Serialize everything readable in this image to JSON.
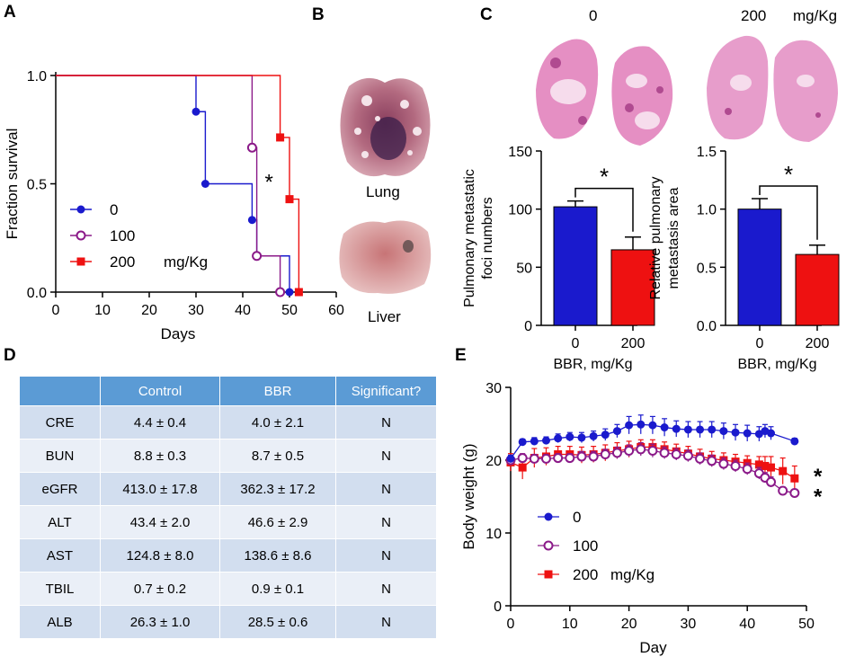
{
  "panels": {
    "A": "A",
    "B": "B",
    "C": "C",
    "D": "D",
    "E": "E"
  },
  "colors": {
    "dose0": "#1a1acd",
    "dose100": "#8b1a89",
    "dose200": "#ee1111",
    "table_header": "#5b9bd5",
    "table_row": "#d2deef",
    "table_row_alt": "#eaeff7"
  },
  "survival": {
    "chart_data": {
      "type": "line",
      "title": "",
      "xlabel": "Days",
      "ylabel": "Fraction survival",
      "xlim": [
        0,
        60
      ],
      "ylim": [
        0,
        1.0
      ],
      "x_ticks": [
        "0",
        "10",
        "20",
        "30",
        "40",
        "50",
        "60"
      ],
      "y_ticks": [
        "0.0",
        "0.5",
        "1.0"
      ],
      "legend": [
        "0",
        "100",
        "200"
      ],
      "legend_unit": "mg/Kg",
      "annotation": "*",
      "series": [
        {
          "name": "0",
          "steps": [
            [
              0,
              1.0
            ],
            [
              30,
              1.0
            ],
            [
              30,
              0.833
            ],
            [
              32,
              0.833
            ],
            [
              32,
              0.5
            ],
            [
              42,
              0.5
            ],
            [
              42,
              0.333
            ],
            [
              43,
              0.333
            ],
            [
              43,
              0.167
            ],
            [
              50,
              0.167
            ],
            [
              50,
              0.0
            ]
          ],
          "markers": [
            [
              30,
              0.833
            ],
            [
              32,
              0.5
            ],
            [
              42,
              0.333
            ],
            [
              50,
              0.0
            ]
          ]
        },
        {
          "name": "100",
          "steps": [
            [
              0,
              1.0
            ],
            [
              42,
              1.0
            ],
            [
              42,
              0.667
            ],
            [
              43,
              0.667
            ],
            [
              43,
              0.167
            ],
            [
              48,
              0.167
            ],
            [
              48,
              0.0
            ]
          ],
          "markers": [
            [
              42,
              0.667
            ],
            [
              43,
              0.167
            ],
            [
              48,
              0.0
            ]
          ]
        },
        {
          "name": "200",
          "steps": [
            [
              0,
              1.0
            ],
            [
              48,
              1.0
            ],
            [
              48,
              0.714
            ],
            [
              50,
              0.714
            ],
            [
              50,
              0.429
            ],
            [
              52,
              0.429
            ],
            [
              52,
              0.0
            ]
          ],
          "markers": [
            [
              48,
              0.714
            ],
            [
              50,
              0.429
            ],
            [
              52,
              0.0
            ]
          ]
        }
      ]
    }
  },
  "organs": {
    "lung_label": "Lung",
    "liver_label": "Liver"
  },
  "histology": {
    "label_0": "0",
    "label_200": "200",
    "unit": "mg/Kg"
  },
  "foci_chart": {
    "chart_data": {
      "type": "bar",
      "categories": [
        "0",
        "200"
      ],
      "values": [
        102,
        65
      ],
      "errors": [
        5,
        11
      ],
      "ylabel": "Pulmonary metastatic foci numbers",
      "xlabel": "BBR, mg/Kg",
      "ylim": [
        0,
        150
      ],
      "y_ticks": [
        "0",
        "50",
        "100",
        "150"
      ],
      "annotation": "*"
    }
  },
  "area_chart": {
    "chart_data": {
      "type": "bar",
      "categories": [
        "0",
        "200"
      ],
      "values": [
        1.0,
        0.61
      ],
      "errors": [
        0.09,
        0.08
      ],
      "ylabel": "Relative pulmonary metastasis area",
      "xlabel": "BBR, mg/Kg",
      "ylim": [
        0,
        1.5
      ],
      "y_ticks": [
        "0.0",
        "0.5",
        "1.0",
        "1.5"
      ],
      "annotation": "*"
    }
  },
  "table": {
    "chart_data": {
      "type": "table",
      "headers": [
        "",
        "Control",
        "BBR",
        "Significant?"
      ],
      "rows": [
        [
          "CRE",
          "4.4 ± 0.4",
          "4.0 ± 2.1",
          "N"
        ],
        [
          "BUN",
          "8.8 ± 0.3",
          "8.7 ± 0.5",
          "N"
        ],
        [
          "eGFR",
          "413.0 ± 17.8",
          "362.3 ± 17.2",
          "N"
        ],
        [
          "ALT",
          "43.4 ± 2.0",
          "46.6 ± 2.9",
          "N"
        ],
        [
          "AST",
          "124.8 ± 8.0",
          "138.6 ± 8.6",
          "N"
        ],
        [
          "TBIL",
          "0.7 ± 0.2",
          "0.9 ± 0.1",
          "N"
        ],
        [
          "ALB",
          "26.3 ± 1.0",
          "28.5 ± 0.6",
          "N"
        ]
      ]
    }
  },
  "weight": {
    "chart_data": {
      "type": "line",
      "xlabel": "Day",
      "ylabel": "Body weight (g)",
      "xlim": [
        0,
        50
      ],
      "ylim": [
        0,
        30
      ],
      "x_ticks": [
        "0",
        "10",
        "20",
        "30",
        "40",
        "50"
      ],
      "y_ticks": [
        "0",
        "10",
        "20",
        "30"
      ],
      "legend": [
        "0",
        "100",
        "200"
      ],
      "legend_unit": "mg/Kg",
      "annotations": [
        "*",
        "*"
      ],
      "series": [
        {
          "name": "0",
          "x": [
            0,
            2,
            4,
            6,
            8,
            10,
            12,
            14,
            16,
            18,
            20,
            22,
            24,
            26,
            28,
            30,
            32,
            34,
            36,
            38,
            40,
            42,
            43,
            44,
            48
          ],
          "y": [
            20.2,
            22.5,
            22.6,
            22.7,
            23.0,
            23.2,
            23.1,
            23.3,
            23.5,
            24.0,
            24.8,
            24.9,
            24.8,
            24.5,
            24.3,
            24.2,
            24.2,
            24.2,
            24.0,
            23.8,
            23.7,
            23.6,
            24.0,
            23.7,
            22.6
          ],
          "err": [
            0.5,
            0.4,
            0.5,
            0.5,
            0.6,
            0.6,
            0.7,
            0.7,
            0.8,
            0.9,
            1.2,
            1.3,
            1.2,
            1.2,
            1.1,
            1.1,
            1.1,
            1.1,
            1.1,
            1.1,
            1.1,
            1.0,
            0.9,
            0.9,
            0.4
          ]
        },
        {
          "name": "100",
          "x": [
            0,
            2,
            4,
            6,
            8,
            10,
            12,
            14,
            16,
            18,
            20,
            22,
            24,
            26,
            28,
            30,
            32,
            34,
            36,
            38,
            40,
            42,
            43,
            44,
            46,
            48
          ],
          "y": [
            20.0,
            20.3,
            20.2,
            20.2,
            20.3,
            20.3,
            20.5,
            20.5,
            20.8,
            21.0,
            21.3,
            21.5,
            21.3,
            21.0,
            20.8,
            20.6,
            20.2,
            19.9,
            19.5,
            19.2,
            18.8,
            18.2,
            17.6,
            17.0,
            15.8,
            15.5
          ],
          "err": [
            0.5,
            0.6,
            0.6,
            0.6,
            0.6,
            0.6,
            0.7,
            0.7,
            0.7,
            0.8,
            0.8,
            0.9,
            0.9,
            0.8,
            0.8,
            0.8,
            0.8,
            0.8,
            0.8,
            0.8,
            0.8,
            0.8,
            0.7,
            0.7,
            0.5,
            0.5
          ]
        },
        {
          "name": "200",
          "x": [
            0,
            2,
            4,
            6,
            8,
            10,
            12,
            14,
            16,
            18,
            20,
            22,
            24,
            26,
            28,
            30,
            32,
            34,
            36,
            38,
            40,
            42,
            43,
            44,
            46,
            48
          ],
          "y": [
            19.7,
            19.0,
            20.3,
            20.5,
            20.8,
            20.8,
            20.7,
            20.8,
            21.0,
            21.3,
            21.5,
            21.8,
            21.8,
            21.5,
            21.2,
            20.9,
            20.5,
            20.2,
            20.0,
            19.8,
            19.6,
            19.4,
            19.2,
            19.0,
            18.5,
            17.5
          ],
          "err": [
            1.2,
            1.6,
            1.3,
            1.2,
            1.1,
            1.1,
            1.1,
            1.1,
            1.1,
            1.1,
            1.1,
            1.0,
            1.0,
            1.0,
            1.0,
            1.0,
            1.0,
            1.0,
            1.0,
            1.0,
            1.0,
            1.1,
            1.3,
            1.5,
            1.8,
            1.7
          ]
        }
      ]
    }
  }
}
